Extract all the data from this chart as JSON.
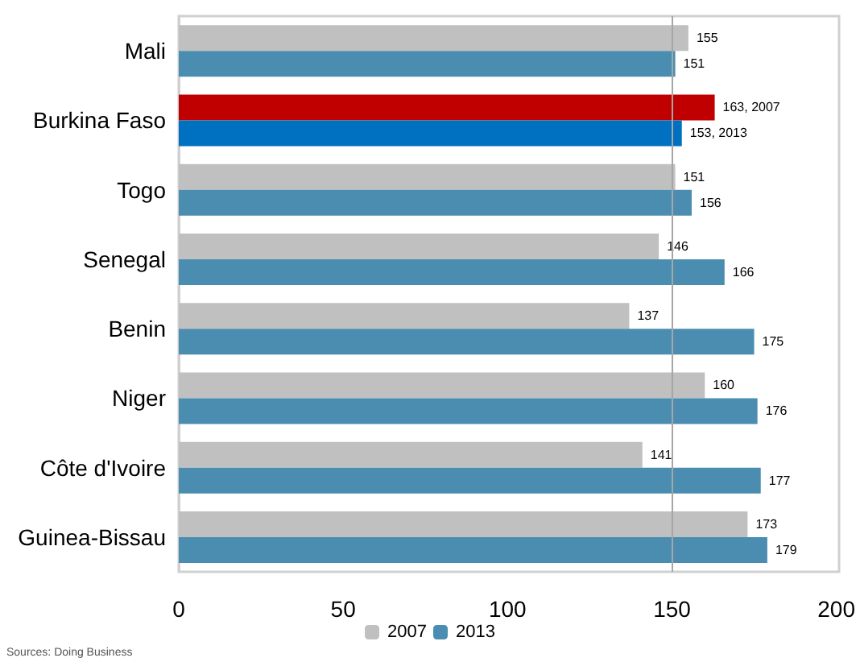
{
  "chart_data": {
    "type": "bar",
    "orientation": "horizontal",
    "categories": [
      "Mali",
      "Burkina Faso",
      "Togo",
      "Senegal",
      "Benin",
      "Niger",
      "Côte d'Ivoire",
      "Guinea-Bissau"
    ],
    "series": [
      {
        "name": "2007",
        "color": "#c0c0c0",
        "colors": [
          "#c0c0c0",
          "#c00000",
          "#c0c0c0",
          "#c0c0c0",
          "#c0c0c0",
          "#c0c0c0",
          "#c0c0c0",
          "#c0c0c0"
        ],
        "values": [
          155,
          163,
          151,
          146,
          137,
          160,
          141,
          173
        ],
        "value_labels": [
          "155",
          "163, 2007",
          "151",
          "146",
          "137",
          "160",
          "141",
          "173"
        ]
      },
      {
        "name": "2013",
        "color": "#4a8db0",
        "colors": [
          "#4a8db0",
          "#0070c0",
          "#4a8db0",
          "#4a8db0",
          "#4a8db0",
          "#4a8db0",
          "#4a8db0",
          "#4a8db0"
        ],
        "values": [
          151,
          153,
          156,
          166,
          175,
          176,
          177,
          179
        ],
        "value_labels": [
          "151",
          "153, 2013",
          "156",
          "166",
          "175",
          "176",
          "177",
          "179"
        ]
      }
    ],
    "xlim": [
      0,
      200
    ],
    "xticks": [
      0,
      50,
      100,
      150,
      200
    ],
    "ref_lines": [
      {
        "axis": "x",
        "value": 150,
        "color": "#a6a6a6"
      }
    ],
    "legend": "bottom",
    "annotations": [
      "Sources: Doing Business"
    ]
  }
}
